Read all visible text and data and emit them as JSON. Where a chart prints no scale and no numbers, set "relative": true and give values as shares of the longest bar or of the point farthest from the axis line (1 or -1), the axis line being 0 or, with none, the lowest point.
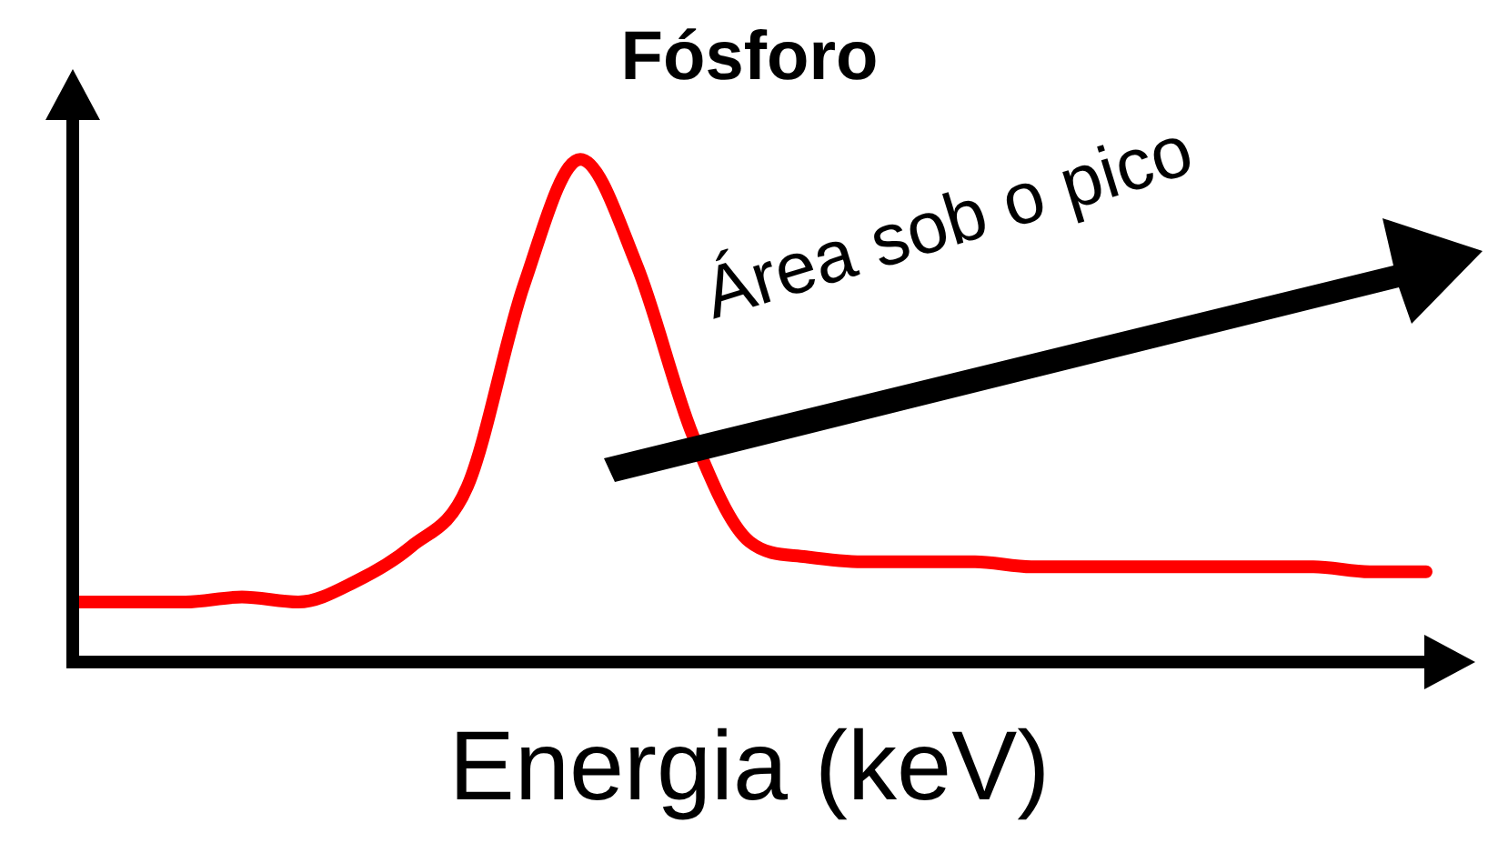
{
  "chart_data": {
    "type": "line",
    "title": "Fósforo",
    "xlabel": "Energia (keV)",
    "relative": true,
    "categories": [
      null,
      null,
      null,
      null,
      null,
      null,
      null,
      null,
      null,
      null,
      null,
      null,
      null,
      null,
      null,
      null,
      null,
      null,
      null,
      null,
      null,
      null,
      null,
      null,
      null
    ],
    "series": [
      {
        "color": "#ff0000",
        "values": [
          0.12,
          0.12,
          0.12,
          0.13,
          0.12,
          0.16,
          0.23,
          0.35,
          0.75,
          1,
          0.79,
          0.45,
          0.24,
          0.21,
          0.2,
          0.2,
          0.2,
          0.19,
          0.19,
          0.19,
          0.19,
          0.19,
          0.19,
          0.18,
          0.18
        ]
      }
    ],
    "annotations": [
      "Área sob o pico"
    ],
    "legend": false,
    "grid": false,
    "marker": "none",
    "line_style": "solid"
  }
}
